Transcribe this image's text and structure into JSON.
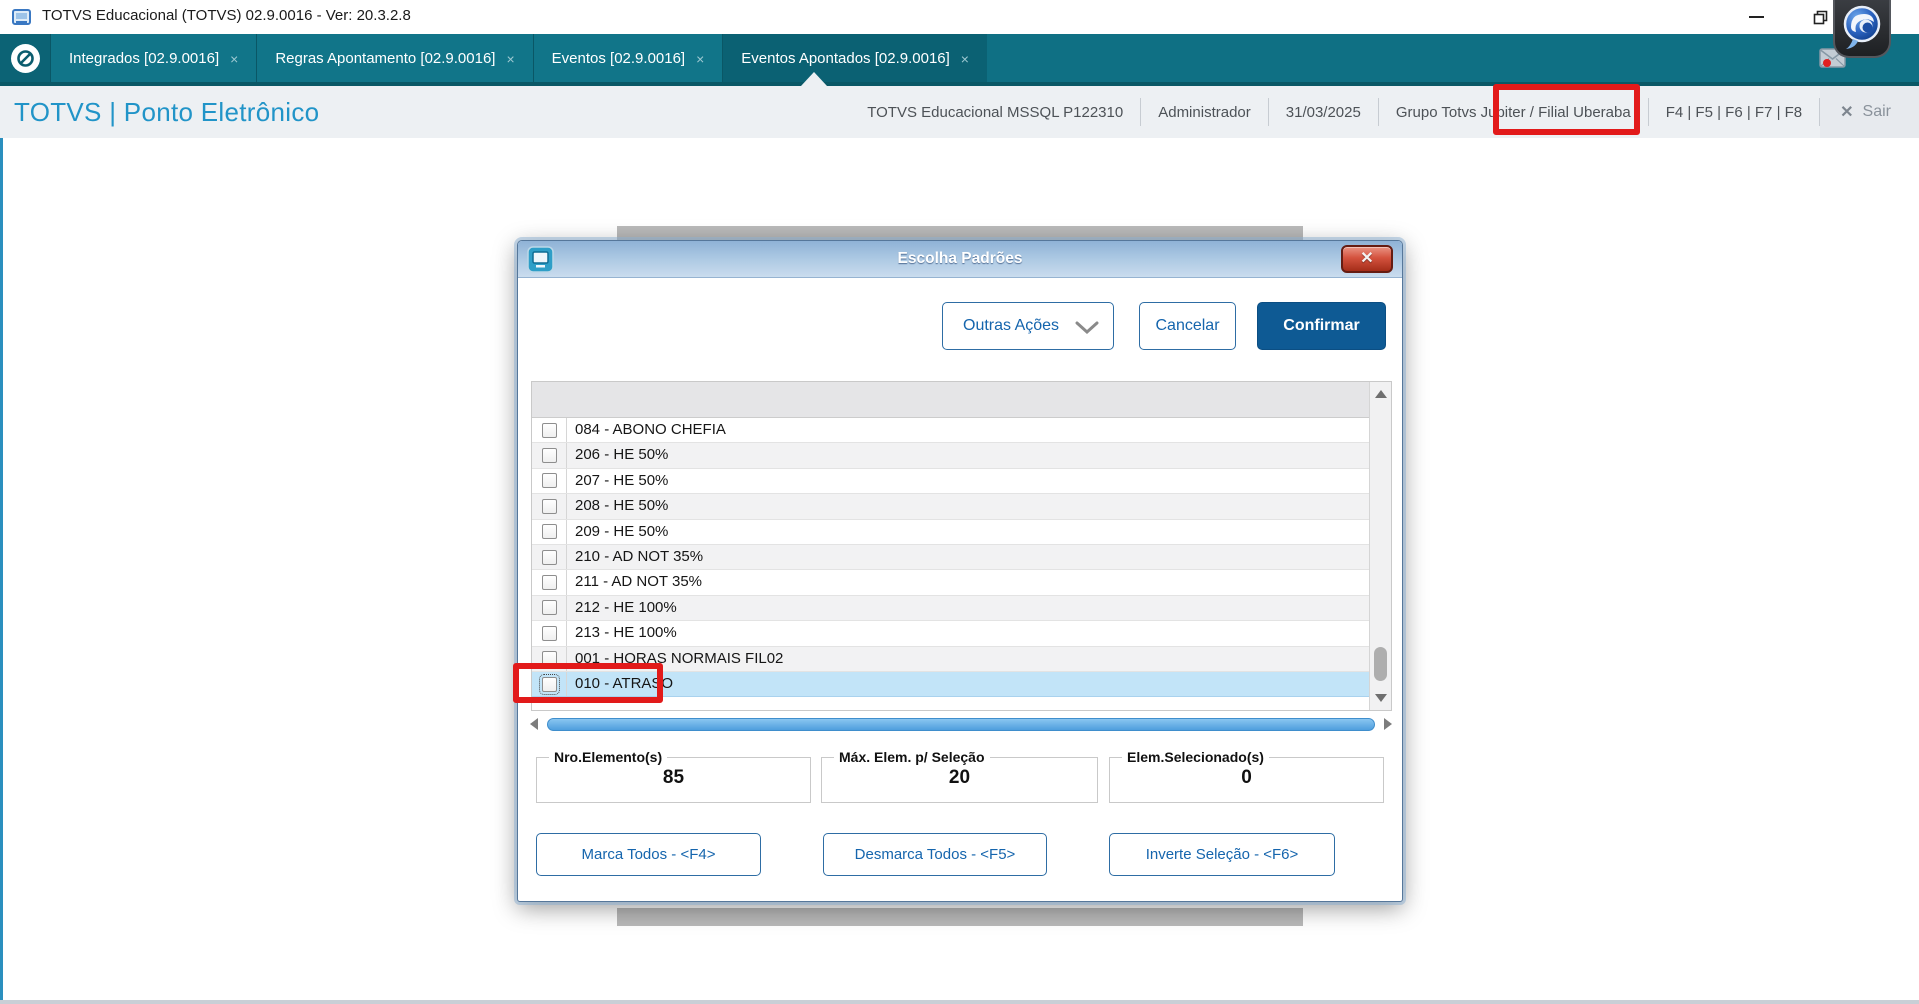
{
  "window": {
    "title": "TOTVS Educacional (TOTVS) 02.9.0016 - Ver: 20.3.2.8"
  },
  "icons": {
    "tab_close": "×",
    "exit_x": "✕"
  },
  "tabs": {
    "items": [
      {
        "label": "Integrados [02.9.0016]",
        "active": false
      },
      {
        "label": "Regras Apontamento [02.9.0016]",
        "active": false
      },
      {
        "label": "Eventos [02.9.0016]",
        "active": false
      },
      {
        "label": "Eventos Apontados [02.9.0016]",
        "active": true
      }
    ]
  },
  "header": {
    "brand": "TOTVS | Ponto Eletrônico",
    "environment": "TOTVS Educacional MSSQL P122310",
    "user": "Administrador",
    "date": "31/03/2025",
    "company": "Grupo Totvs Jupiter /",
    "branch": "Filial Uberaba",
    "fkeys": "F4 | F5 | F6 | F7 | F8",
    "exit": "Sair"
  },
  "modal": {
    "title": "Escolha Padrões",
    "buttons": {
      "more": "Outras Ações",
      "cancel": "Cancelar",
      "confirm": "Confirmar"
    },
    "list": {
      "items": [
        {
          "label": "084 - ABONO CHEFIA",
          "checked": false,
          "selected": false
        },
        {
          "label": "206 - HE 50%",
          "checked": false,
          "selected": false
        },
        {
          "label": "207 - HE 50%",
          "checked": false,
          "selected": false
        },
        {
          "label": "208 - HE 50%",
          "checked": false,
          "selected": false
        },
        {
          "label": "209 - HE 50%",
          "checked": false,
          "selected": false
        },
        {
          "label": "210 - AD NOT 35%",
          "checked": false,
          "selected": false
        },
        {
          "label": "211 - AD NOT 35%",
          "checked": false,
          "selected": false
        },
        {
          "label": "212 - HE 100%",
          "checked": false,
          "selected": false
        },
        {
          "label": "213 - HE 100%",
          "checked": false,
          "selected": false
        },
        {
          "label": "001 - HORAS NORMAIS FIL02",
          "checked": false,
          "selected": false
        },
        {
          "label": "010 - ATRASO",
          "checked": false,
          "selected": true
        }
      ]
    },
    "stats": [
      {
        "label": "Nro.Elemento(s)",
        "value": "85"
      },
      {
        "label": "Máx. Elem. p/ Seleção",
        "value": "20"
      },
      {
        "label": "Elem.Selecionado(s)",
        "value": "0"
      }
    ],
    "footer_buttons": [
      {
        "label": "Marca Todos - <F4>"
      },
      {
        "label": "Desmarca Todos - <F5>"
      },
      {
        "label": "Inverte Seleção - <F6>"
      }
    ]
  },
  "colors": {
    "teal_bar": "#0f7084",
    "active_tab": "#0b6173",
    "brand_blue": "#2194c8",
    "accent_blue": "#1565ad",
    "confirm_bg": "#0e5a94",
    "selected_row": "#c2e4f8",
    "annotation_red": "#e21a1a",
    "modal_title_gradient_top": "#8fb2d6"
  }
}
